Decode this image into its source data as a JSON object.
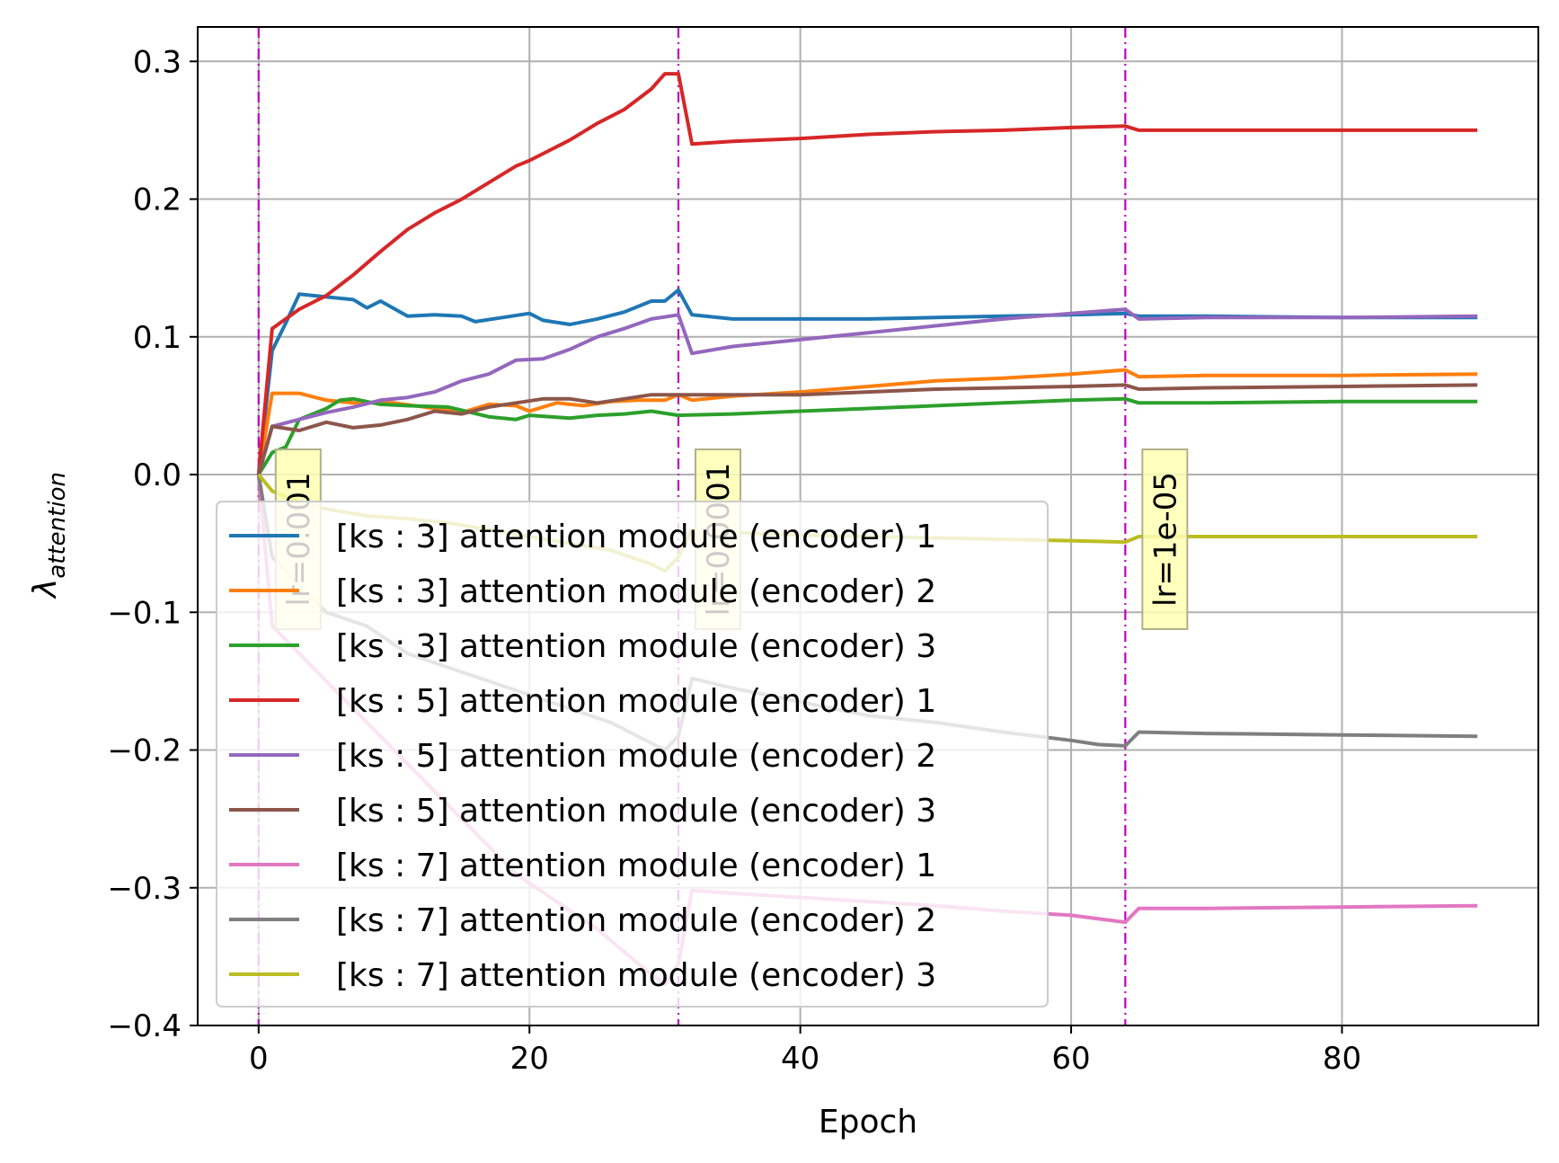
{
  "chart_data": {
    "type": "line",
    "title": "",
    "xlabel": "Epoch",
    "ylabel": "λ",
    "ylabel_subscript": "attention",
    "xlim": [
      -4.5,
      94.5
    ],
    "ylim": [
      -0.4,
      0.325
    ],
    "xticks": [
      0,
      20,
      40,
      60,
      80
    ],
    "xtick_labels": [
      "0",
      "20",
      "40",
      "60",
      "80"
    ],
    "yticks": [
      0.3,
      0.2,
      0.1,
      0.0,
      -0.1,
      -0.2,
      -0.3,
      -0.4
    ],
    "ytick_labels": [
      "0.3",
      "0.2",
      "0.1",
      "0.0",
      "−0.1",
      "−0.2",
      "−0.3",
      "−0.4"
    ],
    "grid": true,
    "legend_position": "lower-left",
    "vlines": [
      {
        "x": 0,
        "label": "lr=0.001",
        "color": "#bf00bf"
      },
      {
        "x": 31,
        "label": "lr=0.0001",
        "color": "#bf00bf"
      },
      {
        "x": 64,
        "label": "lr=1e-05",
        "color": "#bf00bf"
      }
    ],
    "series": [
      {
        "name": "[ks : 3] attention module (encoder) 1",
        "color": "#1f77b4",
        "points": [
          [
            0,
            0
          ],
          [
            1,
            0.09
          ],
          [
            2,
            0.11
          ],
          [
            3,
            0.131
          ],
          [
            5,
            0.129
          ],
          [
            7,
            0.127
          ],
          [
            8,
            0.121
          ],
          [
            9,
            0.126
          ],
          [
            11,
            0.115
          ],
          [
            13,
            0.116
          ],
          [
            15,
            0.115
          ],
          [
            16,
            0.111
          ],
          [
            18,
            0.114
          ],
          [
            20,
            0.117
          ],
          [
            21,
            0.112
          ],
          [
            23,
            0.109
          ],
          [
            25,
            0.113
          ],
          [
            27,
            0.118
          ],
          [
            29,
            0.126
          ],
          [
            30,
            0.126
          ],
          [
            31,
            0.134
          ],
          [
            32,
            0.116
          ],
          [
            35,
            0.113
          ],
          [
            40,
            0.113
          ],
          [
            45,
            0.113
          ],
          [
            50,
            0.114
          ],
          [
            55,
            0.115
          ],
          [
            60,
            0.116
          ],
          [
            64,
            0.117
          ],
          [
            65,
            0.115
          ],
          [
            70,
            0.115
          ],
          [
            80,
            0.114
          ],
          [
            90,
            0.114
          ]
        ]
      },
      {
        "name": "[ks : 3] attention module (encoder) 2",
        "color": "#ff7f0e",
        "points": [
          [
            0,
            0
          ],
          [
            1,
            0.059
          ],
          [
            3,
            0.059
          ],
          [
            5,
            0.054
          ],
          [
            7,
            0.052
          ],
          [
            10,
            0.052
          ],
          [
            13,
            0.048
          ],
          [
            15,
            0.045
          ],
          [
            17,
            0.051
          ],
          [
            19,
            0.05
          ],
          [
            20,
            0.046
          ],
          [
            22,
            0.052
          ],
          [
            24,
            0.05
          ],
          [
            26,
            0.053
          ],
          [
            28,
            0.054
          ],
          [
            30,
            0.054
          ],
          [
            31,
            0.058
          ],
          [
            32,
            0.054
          ],
          [
            35,
            0.057
          ],
          [
            40,
            0.06
          ],
          [
            45,
            0.064
          ],
          [
            50,
            0.068
          ],
          [
            55,
            0.07
          ],
          [
            60,
            0.073
          ],
          [
            64,
            0.076
          ],
          [
            65,
            0.071
          ],
          [
            70,
            0.072
          ],
          [
            80,
            0.072
          ],
          [
            90,
            0.073
          ]
        ]
      },
      {
        "name": "[ks : 3] attention module (encoder) 3",
        "color": "#2ca02c",
        "points": [
          [
            0,
            0
          ],
          [
            1,
            0.016
          ],
          [
            2,
            0.02
          ],
          [
            3,
            0.04
          ],
          [
            5,
            0.048
          ],
          [
            6,
            0.054
          ],
          [
            7,
            0.055
          ],
          [
            9,
            0.051
          ],
          [
            11,
            0.05
          ],
          [
            14,
            0.049
          ],
          [
            17,
            0.042
          ],
          [
            19,
            0.04
          ],
          [
            20,
            0.043
          ],
          [
            23,
            0.041
          ],
          [
            25,
            0.043
          ],
          [
            27,
            0.044
          ],
          [
            29,
            0.046
          ],
          [
            31,
            0.043
          ],
          [
            35,
            0.044
          ],
          [
            40,
            0.046
          ],
          [
            45,
            0.048
          ],
          [
            50,
            0.05
          ],
          [
            55,
            0.052
          ],
          [
            60,
            0.054
          ],
          [
            64,
            0.055
          ],
          [
            65,
            0.052
          ],
          [
            70,
            0.052
          ],
          [
            80,
            0.053
          ],
          [
            90,
            0.053
          ]
        ]
      },
      {
        "name": "[ks : 5] attention module (encoder) 1",
        "color": "#d62728",
        "points": [
          [
            0,
            0
          ],
          [
            1,
            0.106
          ],
          [
            3,
            0.12
          ],
          [
            5,
            0.13
          ],
          [
            7,
            0.145
          ],
          [
            9,
            0.162
          ],
          [
            11,
            0.178
          ],
          [
            13,
            0.19
          ],
          [
            15,
            0.2
          ],
          [
            17,
            0.212
          ],
          [
            19,
            0.224
          ],
          [
            20,
            0.228
          ],
          [
            21,
            0.233
          ],
          [
            23,
            0.243
          ],
          [
            25,
            0.255
          ],
          [
            27,
            0.265
          ],
          [
            29,
            0.28
          ],
          [
            30,
            0.291
          ],
          [
            31,
            0.291
          ],
          [
            32,
            0.24
          ],
          [
            35,
            0.242
          ],
          [
            40,
            0.244
          ],
          [
            45,
            0.247
          ],
          [
            50,
            0.249
          ],
          [
            55,
            0.25
          ],
          [
            60,
            0.252
          ],
          [
            64,
            0.253
          ],
          [
            65,
            0.25
          ],
          [
            70,
            0.25
          ],
          [
            80,
            0.25
          ],
          [
            90,
            0.25
          ]
        ]
      },
      {
        "name": "[ks : 5] attention module (encoder) 2",
        "color": "#9467bd",
        "points": [
          [
            0,
            0
          ],
          [
            1,
            0.035
          ],
          [
            3,
            0.04
          ],
          [
            5,
            0.045
          ],
          [
            7,
            0.049
          ],
          [
            9,
            0.054
          ],
          [
            11,
            0.056
          ],
          [
            13,
            0.06
          ],
          [
            15,
            0.068
          ],
          [
            17,
            0.073
          ],
          [
            19,
            0.083
          ],
          [
            21,
            0.084
          ],
          [
            23,
            0.091
          ],
          [
            25,
            0.1
          ],
          [
            27,
            0.106
          ],
          [
            29,
            0.113
          ],
          [
            31,
            0.116
          ],
          [
            32,
            0.088
          ],
          [
            35,
            0.093
          ],
          [
            40,
            0.098
          ],
          [
            45,
            0.103
          ],
          [
            50,
            0.108
          ],
          [
            55,
            0.113
          ],
          [
            60,
            0.117
          ],
          [
            64,
            0.12
          ],
          [
            65,
            0.113
          ],
          [
            70,
            0.114
          ],
          [
            80,
            0.114
          ],
          [
            90,
            0.115
          ]
        ]
      },
      {
        "name": "[ks : 5] attention module (encoder) 3",
        "color": "#8c564b",
        "points": [
          [
            0,
            0
          ],
          [
            1,
            0.035
          ],
          [
            3,
            0.032
          ],
          [
            5,
            0.038
          ],
          [
            7,
            0.034
          ],
          [
            9,
            0.036
          ],
          [
            11,
            0.04
          ],
          [
            13,
            0.046
          ],
          [
            15,
            0.044
          ],
          [
            17,
            0.049
          ],
          [
            19,
            0.052
          ],
          [
            21,
            0.055
          ],
          [
            23,
            0.055
          ],
          [
            25,
            0.052
          ],
          [
            27,
            0.055
          ],
          [
            29,
            0.058
          ],
          [
            31,
            0.058
          ],
          [
            35,
            0.058
          ],
          [
            40,
            0.058
          ],
          [
            45,
            0.06
          ],
          [
            50,
            0.062
          ],
          [
            55,
            0.063
          ],
          [
            60,
            0.064
          ],
          [
            64,
            0.065
          ],
          [
            65,
            0.062
          ],
          [
            70,
            0.063
          ],
          [
            80,
            0.064
          ],
          [
            90,
            0.065
          ]
        ]
      },
      {
        "name": "[ks : 7] attention module (encoder) 1",
        "color": "#e377c2",
        "points": [
          [
            0,
            0
          ],
          [
            1,
            -0.11
          ],
          [
            3,
            -0.13
          ],
          [
            5,
            -0.15
          ],
          [
            7,
            -0.17
          ],
          [
            10,
            -0.2
          ],
          [
            13,
            -0.23
          ],
          [
            16,
            -0.26
          ],
          [
            19,
            -0.29
          ],
          [
            22,
            -0.31
          ],
          [
            25,
            -0.33
          ],
          [
            28,
            -0.355
          ],
          [
            30,
            -0.37
          ],
          [
            31,
            -0.355
          ],
          [
            32,
            -0.302
          ],
          [
            35,
            -0.304
          ],
          [
            40,
            -0.307
          ],
          [
            45,
            -0.31
          ],
          [
            50,
            -0.313
          ],
          [
            55,
            -0.317
          ],
          [
            60,
            -0.32
          ],
          [
            64,
            -0.325
          ],
          [
            65,
            -0.315
          ],
          [
            70,
            -0.315
          ],
          [
            80,
            -0.314
          ],
          [
            90,
            -0.313
          ]
        ]
      },
      {
        "name": "[ks : 7] attention module (encoder) 2",
        "color": "#7f7f7f",
        "points": [
          [
            0,
            0
          ],
          [
            1,
            -0.06
          ],
          [
            3,
            -0.08
          ],
          [
            5,
            -0.1
          ],
          [
            8,
            -0.11
          ],
          [
            11,
            -0.13
          ],
          [
            14,
            -0.14
          ],
          [
            17,
            -0.15
          ],
          [
            20,
            -0.16
          ],
          [
            23,
            -0.17
          ],
          [
            26,
            -0.18
          ],
          [
            29,
            -0.195
          ],
          [
            30,
            -0.2
          ],
          [
            31,
            -0.19
          ],
          [
            32,
            -0.148
          ],
          [
            35,
            -0.155
          ],
          [
            40,
            -0.165
          ],
          [
            45,
            -0.175
          ],
          [
            50,
            -0.18
          ],
          [
            55,
            -0.187
          ],
          [
            60,
            -0.193
          ],
          [
            62,
            -0.196
          ],
          [
            64,
            -0.197
          ],
          [
            65,
            -0.187
          ],
          [
            70,
            -0.188
          ],
          [
            80,
            -0.189
          ],
          [
            90,
            -0.19
          ]
        ]
      },
      {
        "name": "[ks : 7] attention module (encoder) 3",
        "color": "#bcbd22",
        "points": [
          [
            0,
            0
          ],
          [
            1,
            -0.012
          ],
          [
            3,
            -0.02
          ],
          [
            5,
            -0.025
          ],
          [
            8,
            -0.03
          ],
          [
            11,
            -0.032
          ],
          [
            14,
            -0.035
          ],
          [
            17,
            -0.04
          ],
          [
            20,
            -0.045
          ],
          [
            23,
            -0.05
          ],
          [
            26,
            -0.055
          ],
          [
            29,
            -0.065
          ],
          [
            30,
            -0.07
          ],
          [
            31,
            -0.06
          ],
          [
            32,
            -0.04
          ],
          [
            35,
            -0.042
          ],
          [
            40,
            -0.044
          ],
          [
            45,
            -0.045
          ],
          [
            50,
            -0.046
          ],
          [
            55,
            -0.047
          ],
          [
            60,
            -0.048
          ],
          [
            64,
            -0.049
          ],
          [
            65,
            -0.045
          ],
          [
            70,
            -0.045
          ],
          [
            80,
            -0.045
          ],
          [
            90,
            -0.045
          ]
        ]
      }
    ]
  }
}
